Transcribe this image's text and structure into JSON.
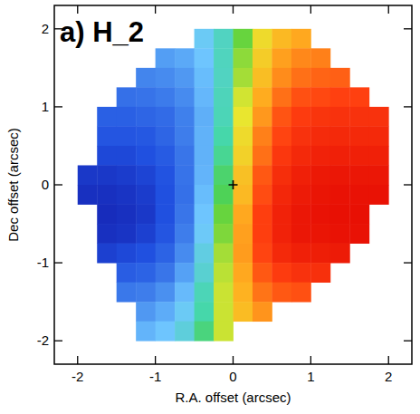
{
  "chart_data": {
    "type": "heatmap",
    "title": "a) H_2",
    "x_label": "R.A. offset (arcsec)",
    "y_label": "Dec offset (arcsec)",
    "xlim": [
      -2.3,
      2.3
    ],
    "ylim": [
      -2.3,
      2.3
    ],
    "xticks": [
      -2,
      -1,
      0,
      1,
      2
    ],
    "yticks": [
      -2,
      -1,
      0,
      1,
      2
    ],
    "color_range": [
      -1,
      1
    ],
    "center": {
      "x": 0,
      "y": 0
    },
    "x": [
      -1.875,
      -1.625,
      -1.375,
      -1.125,
      -0.875,
      -0.625,
      -0.375,
      -0.125,
      0.125,
      0.375,
      0.625,
      0.875,
      1.125,
      1.375,
      1.625,
      1.875
    ],
    "y": [
      1.875,
      1.625,
      1.375,
      1.125,
      0.875,
      0.625,
      0.375,
      0.125,
      -0.125,
      -0.375,
      -0.625,
      -0.875,
      -1.125,
      -1.375,
      -1.625,
      -1.875
    ],
    "cells": [
      [
        null,
        null,
        null,
        null,
        null,
        null,
        -0.37,
        -0.21,
        0.03,
        0.26,
        0.4,
        0.46,
        null,
        null,
        null,
        null
      ],
      [
        null,
        null,
        null,
        null,
        -0.55,
        -0.51,
        -0.41,
        -0.2,
        0.08,
        0.32,
        0.48,
        0.54,
        0.56,
        null,
        null,
        null
      ],
      [
        null,
        null,
        null,
        -0.64,
        -0.62,
        -0.57,
        -0.44,
        -0.21,
        0.11,
        0.38,
        0.53,
        0.6,
        0.63,
        0.64,
        null,
        null
      ],
      [
        null,
        null,
        -0.72,
        -0.71,
        -0.68,
        -0.62,
        -0.46,
        -0.19,
        0.17,
        0.45,
        0.6,
        0.68,
        0.7,
        0.72,
        0.72,
        null
      ],
      [
        null,
        -0.78,
        -0.78,
        -0.76,
        -0.74,
        -0.66,
        -0.49,
        -0.18,
        0.21,
        0.5,
        0.67,
        0.74,
        0.77,
        0.78,
        0.78,
        0.78
      ],
      [
        null,
        -0.82,
        -0.82,
        -0.81,
        -0.76,
        -0.67,
        -0.48,
        -0.14,
        0.26,
        0.56,
        0.71,
        0.78,
        0.81,
        0.82,
        0.82,
        0.82
      ],
      [
        null,
        -0.86,
        -0.86,
        -0.84,
        -0.8,
        -0.7,
        -0.48,
        -0.11,
        0.3,
        0.6,
        0.76,
        0.82,
        0.85,
        0.86,
        0.86,
        0.86
      ],
      [
        -0.9,
        -0.9,
        -0.89,
        -0.87,
        -0.83,
        -0.71,
        -0.47,
        -0.06,
        0.37,
        0.66,
        0.8,
        0.86,
        0.89,
        0.9,
        0.9,
        0.9
      ],
      [
        -0.92,
        -0.92,
        -0.91,
        -0.89,
        -0.84,
        -0.72,
        -0.44,
        -0.03,
        0.4,
        0.69,
        0.83,
        0.88,
        0.91,
        0.92,
        0.92,
        0.92
      ],
      [
        null,
        -0.93,
        -0.92,
        -0.9,
        -0.84,
        -0.7,
        -0.41,
        0.03,
        0.46,
        0.73,
        0.85,
        0.9,
        0.92,
        0.93,
        0.93,
        null
      ],
      [
        null,
        -0.92,
        -0.91,
        -0.88,
        -0.82,
        -0.67,
        -0.38,
        0.06,
        0.48,
        0.73,
        0.85,
        0.9,
        0.91,
        0.92,
        0.92,
        null
      ],
      [
        null,
        -0.88,
        -0.86,
        -0.84,
        -0.77,
        -0.62,
        -0.31,
        0.11,
        0.49,
        0.71,
        0.82,
        0.86,
        0.87,
        0.88,
        null,
        null
      ],
      [
        null,
        null,
        -0.79,
        -0.77,
        -0.7,
        -0.54,
        -0.26,
        0.14,
        0.46,
        0.66,
        0.74,
        0.78,
        0.79,
        null,
        null,
        null
      ],
      [
        null,
        null,
        -0.69,
        -0.67,
        -0.6,
        -0.45,
        -0.18,
        0.16,
        0.43,
        0.59,
        0.66,
        0.68,
        null,
        null,
        null,
        null
      ],
      [
        null,
        null,
        null,
        -0.57,
        -0.5,
        -0.37,
        -0.14,
        0.16,
        0.39,
        0.51,
        null,
        null,
        null,
        null,
        null,
        null
      ],
      [
        null,
        null,
        null,
        -0.47,
        -0.41,
        -0.29,
        -0.08,
        0.16,
        null,
        null,
        null,
        null,
        null,
        null,
        null,
        null
      ]
    ]
  }
}
